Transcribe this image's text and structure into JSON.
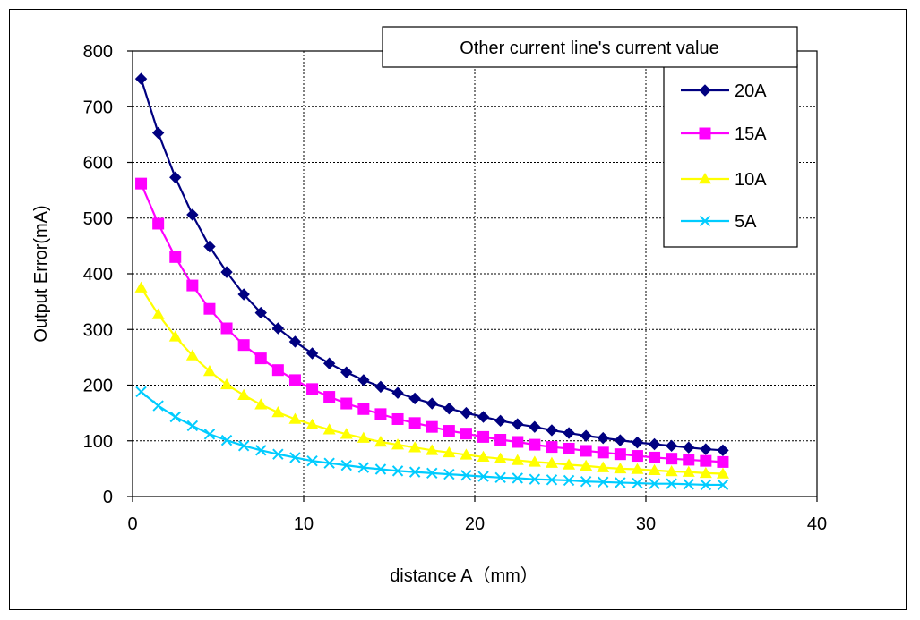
{
  "chart_data": {
    "type": "line",
    "title": "",
    "legend_title": "Other current line's current value",
    "xlabel": "distance A（mm）",
    "ylabel": "Output Error(mA)",
    "xlim": [
      0,
      40
    ],
    "ylim": [
      0,
      800
    ],
    "x_ticks": [
      "0",
      "10",
      "20",
      "30",
      "40"
    ],
    "y_ticks": [
      "0",
      "100",
      "200",
      "300",
      "400",
      "500",
      "600",
      "700",
      "800"
    ],
    "grid": true,
    "legend_position": "top-right",
    "x": [
      0.5,
      1.5,
      2.5,
      3.5,
      4.5,
      5.5,
      6.5,
      7.5,
      8.5,
      9.5,
      10.5,
      11.5,
      12.5,
      13.5,
      14.5,
      15.5,
      16.5,
      17.5,
      18.5,
      19.5,
      20.5,
      21.5,
      22.5,
      23.5,
      24.5,
      25.5,
      26.5,
      27.5,
      28.5,
      29.5,
      30.5,
      31.5,
      32.5,
      33.5,
      34.5
    ],
    "series": [
      {
        "name": "20A",
        "color": "#000080",
        "marker": "diamond",
        "values": [
          750,
          653,
          573,
          506,
          449,
          403,
          363,
          330,
          302,
          278,
          257,
          239,
          223,
          209,
          197,
          186,
          176,
          167,
          158,
          150,
          143,
          136,
          130,
          125,
          119,
          114,
          109,
          105,
          101,
          97,
          94,
          91,
          88,
          85,
          83
        ]
      },
      {
        "name": "15A",
        "color": "#FF00FF",
        "marker": "square",
        "values": [
          562,
          490,
          430,
          379,
          337,
          302,
          272,
          248,
          227,
          209,
          193,
          179,
          167,
          157,
          148,
          139,
          132,
          125,
          118,
          113,
          107,
          102,
          98,
          93,
          89,
          86,
          82,
          79,
          76,
          73,
          70,
          68,
          66,
          64,
          62
        ]
      },
      {
        "name": "10A",
        "color": "#FFFF00",
        "marker": "triangle",
        "values": [
          375,
          327,
          287,
          253,
          225,
          201,
          182,
          165,
          151,
          139,
          129,
          120,
          112,
          105,
          98,
          93,
          88,
          83,
          79,
          75,
          71,
          68,
          65,
          62,
          60,
          57,
          55,
          52,
          50,
          49,
          47,
          45,
          44,
          42,
          41
        ]
      },
      {
        "name": "5A",
        "color": "#00CCFF",
        "marker": "x",
        "values": [
          188,
          163,
          143,
          127,
          112,
          101,
          91,
          83,
          76,
          70,
          64,
          60,
          56,
          52,
          49,
          46,
          44,
          42,
          40,
          38,
          36,
          34,
          33,
          31,
          30,
          29,
          27,
          26,
          25,
          24,
          23,
          23,
          22,
          21,
          21
        ]
      }
    ]
  }
}
